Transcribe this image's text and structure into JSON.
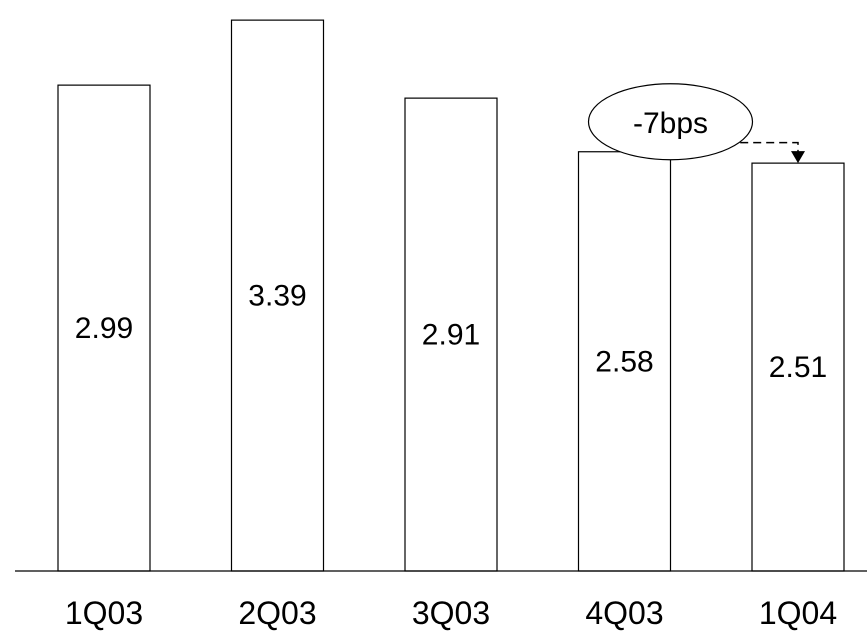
{
  "chart_data": {
    "type": "bar",
    "categories": [
      "1Q03",
      "2Q03",
      "3Q03",
      "4Q03",
      "1Q04"
    ],
    "values": [
      2.99,
      3.39,
      2.91,
      2.58,
      2.51
    ],
    "data_labels": [
      "2.99",
      "3.39",
      "2.91",
      "2.58",
      "2.51"
    ],
    "title": "",
    "xlabel": "",
    "ylabel": "",
    "ylim": [
      0,
      3.44
    ],
    "grid": false,
    "bar_fill": "#ffffff",
    "bar_stroke": "#000000",
    "annotation": {
      "text": "-7bps",
      "from_category": "4Q03",
      "to_category": "1Q04"
    }
  }
}
